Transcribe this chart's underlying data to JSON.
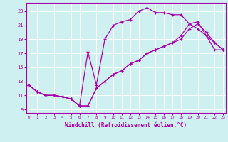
{
  "xlabel": "Windchill (Refroidissement éolien,°C)",
  "background_color": "#cff0f0",
  "grid_color": "#ffffff",
  "line_color": "#aa00aa",
  "x_ticks": [
    0,
    1,
    2,
    3,
    4,
    5,
    6,
    7,
    8,
    9,
    10,
    11,
    12,
    13,
    14,
    15,
    16,
    17,
    18,
    19,
    20,
    21,
    22,
    23
  ],
  "y_ticks": [
    9,
    11,
    13,
    15,
    17,
    19,
    21,
    23
  ],
  "xlim": [
    -0.3,
    23.3
  ],
  "ylim": [
    8.5,
    24.2
  ],
  "line1_x": [
    0,
    1,
    2,
    3,
    4,
    5,
    6,
    7,
    8,
    9,
    10,
    11,
    12,
    13,
    14,
    15,
    16,
    17,
    18,
    19,
    20,
    21,
    22,
    23
  ],
  "line1_y": [
    12.5,
    11.5,
    11.0,
    11.0,
    10.8,
    10.5,
    9.5,
    17.2,
    12.5,
    19.0,
    21.0,
    21.5,
    21.8,
    23.0,
    23.5,
    22.8,
    22.8,
    22.5,
    22.5,
    21.2,
    20.5,
    19.5,
    17.5,
    17.5
  ],
  "line2_x": [
    0,
    1,
    2,
    3,
    4,
    5,
    6,
    7,
    8,
    9,
    10,
    11,
    12,
    13,
    14,
    15,
    16,
    17,
    18,
    19,
    20,
    21,
    22,
    23
  ],
  "line2_y": [
    12.5,
    11.5,
    11.0,
    11.0,
    10.8,
    10.5,
    9.5,
    9.5,
    12.0,
    13.0,
    14.0,
    14.5,
    15.5,
    16.0,
    17.0,
    17.5,
    18.0,
    18.5,
    19.0,
    20.5,
    21.2,
    20.0,
    18.5,
    17.5
  ],
  "line3_x": [
    0,
    1,
    2,
    3,
    4,
    5,
    6,
    7,
    8,
    9,
    10,
    11,
    12,
    13,
    14,
    15,
    16,
    17,
    18,
    19,
    20,
    21,
    22,
    23
  ],
  "line3_y": [
    12.5,
    11.5,
    11.0,
    11.0,
    10.8,
    10.5,
    9.5,
    9.5,
    12.0,
    13.0,
    14.0,
    14.5,
    15.5,
    16.0,
    17.0,
    17.5,
    18.0,
    18.5,
    19.5,
    21.2,
    21.5,
    19.5,
    18.5,
    17.5
  ]
}
